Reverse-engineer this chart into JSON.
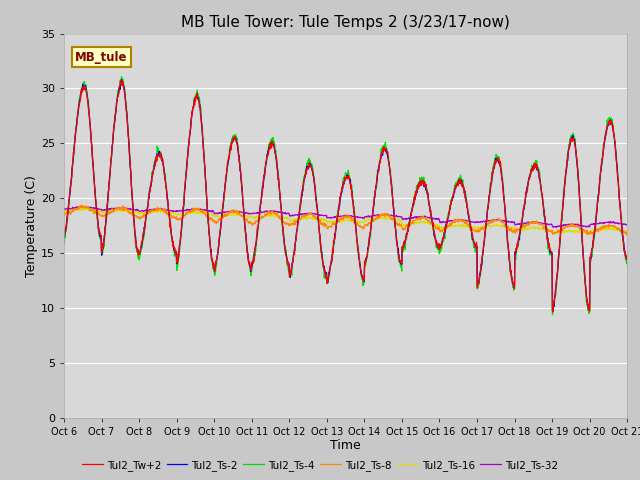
{
  "title": "MB Tule Tower: Tule Temps 2 (3/23/17-now)",
  "xlabel": "Time",
  "ylabel": "Temperature (C)",
  "xlim": [
    0,
    15
  ],
  "ylim": [
    0,
    35
  ],
  "yticks": [
    0,
    5,
    10,
    15,
    20,
    25,
    30,
    35
  ],
  "xtick_labels": [
    "Oct 6",
    "Oct 7",
    "Oct 8",
    "Oct 9",
    "Oct 10",
    "Oct 11",
    "Oct 12",
    "Oct 13",
    "Oct 14",
    "Oct 15",
    "Oct 16",
    "Oct 17",
    "Oct 18",
    "Oct 19",
    "Oct 20",
    "Oct 21"
  ],
  "fig_bg_color": "#c8c8c8",
  "plot_bg_color": "#d8d8d8",
  "legend_label": "MB_tule",
  "legend_box_color": "#ffffc0",
  "legend_box_edge": "#b08000",
  "legend_text_color": "#800000",
  "series": [
    {
      "name": "Tul2_Tw+2",
      "color": "#ff0000"
    },
    {
      "name": "Tul2_Ts-2",
      "color": "#0000ff"
    },
    {
      "name": "Tul2_Ts-4",
      "color": "#00dd00"
    },
    {
      "name": "Tul2_Ts-8",
      "color": "#ff8800"
    },
    {
      "name": "Tul2_Ts-16",
      "color": "#dddd00"
    },
    {
      "name": "Tul2_Ts-32",
      "color": "#aa00cc"
    }
  ],
  "title_fontsize": 11,
  "axis_label_fontsize": 9,
  "tick_fontsize": 8,
  "linewidth": 0.9
}
